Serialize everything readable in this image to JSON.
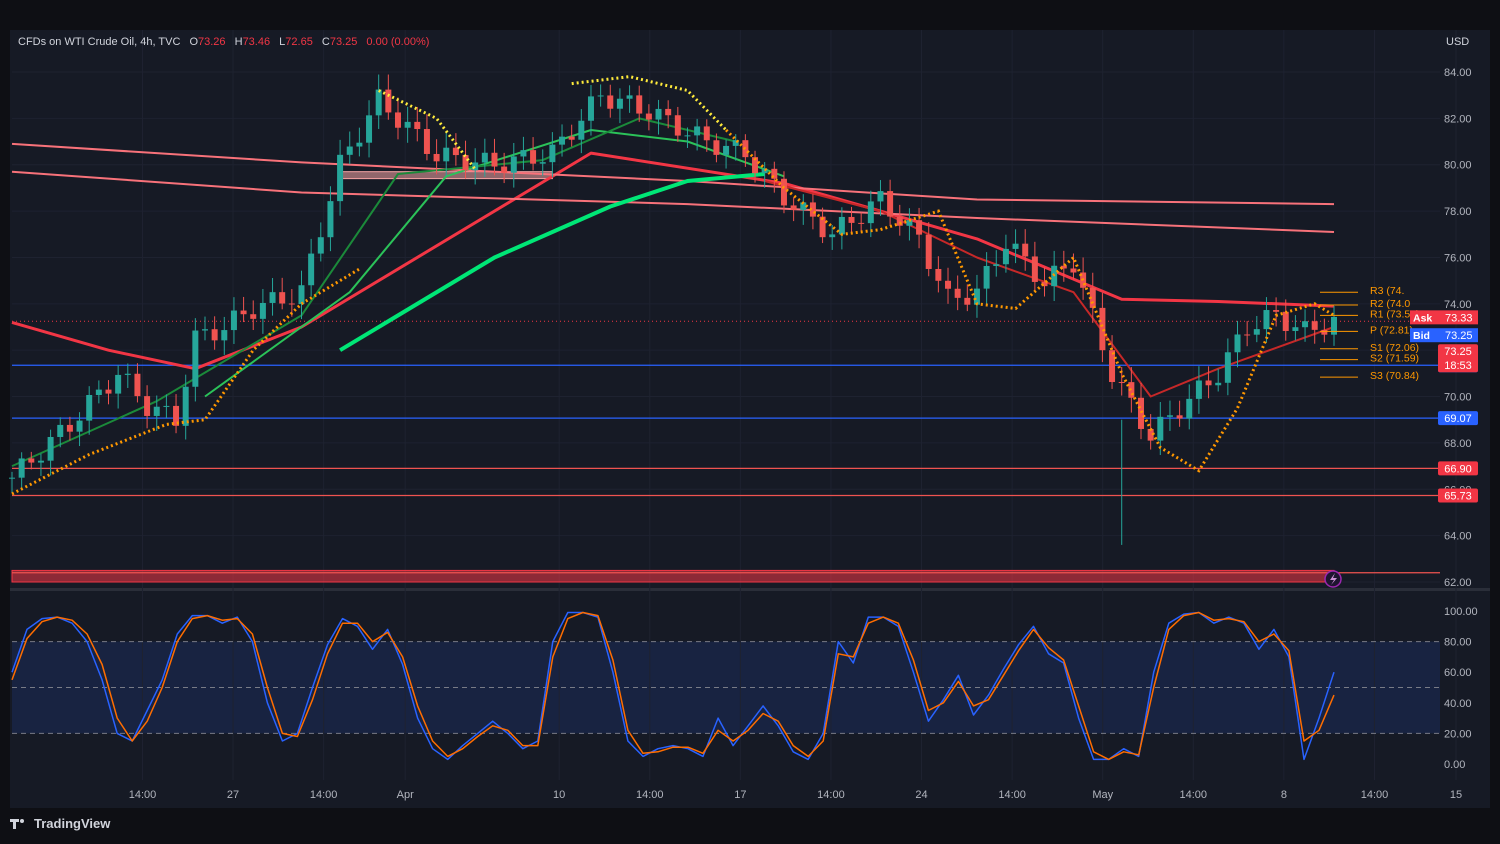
{
  "legend": {
    "symbol": "CFDs on WTI Crude Oil, 4h, TVC",
    "o_label": "O",
    "o_value": "73.26",
    "h_label": "H",
    "h_value": "73.46",
    "l_label": "L",
    "l_value": "72.65",
    "c_label": "C",
    "c_value": "73.25",
    "change": "0.00 (0.00%)"
  },
  "currency": "USD",
  "footer": {
    "brand": "TradingView"
  },
  "colors": {
    "background": "#161a25",
    "up": "#26a69a",
    "down": "#ef5350",
    "grid": "#1e2230",
    "text": "#b2b5be",
    "accent_blue": "#2962ff",
    "stoch_k": "#2962ff",
    "stoch_d": "#ff6d00"
  },
  "chart_data": [
    {
      "type": "candlestick",
      "x_ticks": [
        "14:00",
        "27",
        "14:00",
        "Apr",
        "10",
        "14:00",
        "17",
        "14:00",
        "24",
        "14:00",
        "May",
        "14:00",
        "8",
        "14:00",
        "15"
      ],
      "y_ticks": [
        "84.00",
        "82.00",
        "80.00",
        "78.00",
        "76.00",
        "74.00",
        "72.00",
        "70.00",
        "68.00",
        "66.00",
        "64.00",
        "62.00"
      ],
      "ylim": [
        61.7,
        85.0
      ],
      "close_path": [
        [
          0,
          66.5
        ],
        [
          6,
          68.8
        ],
        [
          11,
          71.0
        ],
        [
          14,
          69.6
        ],
        [
          17,
          69.0
        ],
        [
          19,
          72.5
        ],
        [
          22,
          73.0
        ],
        [
          25,
          73.8
        ],
        [
          30,
          74.5
        ],
        [
          34,
          80.0
        ],
        [
          38,
          82.8
        ],
        [
          44,
          80.4
        ],
        [
          50,
          80.0
        ],
        [
          56,
          80.5
        ],
        [
          61,
          83.0
        ],
        [
          66,
          82.3
        ],
        [
          72,
          81.0
        ],
        [
          76,
          80.5
        ],
        [
          80,
          78.6
        ],
        [
          85,
          77.0
        ],
        [
          90,
          78.5
        ],
        [
          94,
          76.8
        ],
        [
          97,
          74.2
        ],
        [
          100,
          74.5
        ],
        [
          103,
          76.7
        ],
        [
          107,
          74.9
        ],
        [
          110,
          75.8
        ],
        [
          114,
          71.0
        ],
        [
          118,
          68.3
        ],
        [
          121,
          69.5
        ],
        [
          125,
          71.0
        ],
        [
          128,
          73.0
        ],
        [
          131,
          73.5
        ],
        [
          134,
          72.8
        ],
        [
          137,
          73.25
        ]
      ],
      "moving_averages": [
        {
          "color": "#f23645",
          "width": 3,
          "points": [
            [
              0,
              73.2
            ],
            [
              10,
              72.0
            ],
            [
              19,
              71.2
            ],
            [
              30,
              73.0
            ],
            [
              60,
              80.5
            ],
            [
              80,
              79.2
            ],
            [
              100,
              76.8
            ],
            [
              115,
              74.2
            ],
            [
              125,
              74.1
            ],
            [
              137,
              73.9
            ]
          ]
        },
        {
          "color": "#f8727a",
          "width": 2,
          "points": [
            [
              0,
              80.9
            ],
            [
              30,
              80.1
            ],
            [
              70,
              79.3
            ],
            [
              100,
              78.5
            ],
            [
              137,
              78.3
            ]
          ]
        },
        {
          "color": "#f8727a",
          "width": 2,
          "points": [
            [
              0,
              79.7
            ],
            [
              30,
              78.8
            ],
            [
              70,
              78.3
            ],
            [
              100,
              77.7
            ],
            [
              137,
              77.1
            ]
          ]
        },
        {
          "color": "#00e676",
          "width": 4,
          "points": [
            [
              34,
              72.0
            ],
            [
              50,
              76.0
            ],
            [
              62,
              78.2
            ],
            [
              70,
              79.3
            ],
            [
              78,
              79.6
            ]
          ]
        },
        {
          "color": "#2bc259",
          "width": 2,
          "points": [
            [
              20,
              70.0
            ],
            [
              35,
              74.5
            ],
            [
              45,
              79.5
            ],
            [
              60,
              81.5
            ],
            [
              70,
              81.0
            ],
            [
              80,
              79.5
            ]
          ]
        },
        {
          "color": "#1b8a3a",
          "width": 2,
          "points": [
            [
              0,
              67.0
            ],
            [
              15,
              69.8
            ],
            [
              30,
              73.5
            ],
            [
              40,
              79.6
            ],
            [
              55,
              80.2
            ],
            [
              65,
              82.0
            ],
            [
              75,
              81.0
            ]
          ]
        },
        {
          "color": "#c62828",
          "width": 2,
          "points": [
            [
              78,
              79.3
            ],
            [
              90,
              78.0
            ],
            [
              100,
              76.0
            ],
            [
              110,
              74.5
            ],
            [
              118,
              70.0
            ],
            [
              125,
              71.2
            ],
            [
              137,
              73.0
            ]
          ]
        }
      ],
      "supertrend": [
        {
          "color": "#ff9800",
          "points": [
            [
              0,
              65.8
            ],
            [
              8,
              67.5
            ],
            [
              16,
              68.8
            ],
            [
              20,
              69.0
            ],
            [
              25,
              72.0
            ],
            [
              30,
              74.0
            ],
            [
              36,
              75.5
            ]
          ]
        },
        {
          "color": "#ffeb3b",
          "points": [
            [
              38,
              83.2
            ],
            [
              44,
              82.0
            ],
            [
              48,
              79.8
            ]
          ]
        },
        {
          "color": "#ffeb3b",
          "points": [
            [
              58,
              83.5
            ],
            [
              64,
              83.8
            ],
            [
              70,
              83.2
            ],
            [
              74,
              81.5
            ]
          ]
        },
        {
          "color": "#ff9800",
          "points": [
            [
              74,
              81.5
            ],
            [
              80,
              79.0
            ],
            [
              86,
              77.0
            ],
            [
              90,
              77.2
            ],
            [
              96,
              78.0
            ],
            [
              100,
              74.0
            ],
            [
              104,
              73.8
            ],
            [
              110,
              76.0
            ],
            [
              115,
              71.0
            ],
            [
              119,
              67.8
            ],
            [
              123,
              66.8
            ],
            [
              127,
              69.5
            ],
            [
              131,
              73.5
            ],
            [
              135,
              74.0
            ],
            [
              137,
              73.5
            ]
          ]
        }
      ],
      "horizontal_levels": [
        {
          "value": 71.35,
          "label": "71.35",
          "color": "#2962ff",
          "label_bg": "#2962ff"
        },
        {
          "value": 69.07,
          "label": "69.07",
          "color": "#2962ff",
          "label_bg": "#2962ff"
        },
        {
          "value": 66.9,
          "label": "66.90",
          "color": "#ef5350",
          "label_bg": "#f23645"
        },
        {
          "value": 65.73,
          "label": "65.73",
          "color": "#ef5350",
          "label_bg": "#f23645"
        },
        {
          "value": 62.4,
          "label": "",
          "color": "#ef5350",
          "label_bg": ""
        }
      ],
      "zones": [
        {
          "from_index": 34,
          "to_index": 56,
          "y_low": 79.4,
          "y_high": 79.7,
          "color": "#f8a5a5"
        },
        {
          "from_index": 0,
          "to_index": 137,
          "y_low": 62.0,
          "y_high": 62.5,
          "color": "#f23645"
        }
      ],
      "pivots": [
        {
          "label": "R3 (74.",
          "value": 74.5
        },
        {
          "label": "R2 (74.0",
          "value": 73.95
        },
        {
          "label": "R1 (73.50)",
          "value": 73.5
        },
        {
          "label": "P (72.81)",
          "value": 72.81
        },
        {
          "label": "S1 (72.06)",
          "value": 72.06
        },
        {
          "label": "S2 (71.59)",
          "value": 71.59
        },
        {
          "label": "S3 (70.84)",
          "value": 70.84
        }
      ],
      "price_tags": [
        {
          "name": "Ask",
          "value": 73.33,
          "label": "73.33",
          "bg": "#f23645"
        },
        {
          "name": "Bid",
          "value": 73.25,
          "label": "73.25",
          "bg": "#2962ff"
        },
        {
          "name": "last",
          "value": 73.25,
          "label": "73.25",
          "sub": "18:53",
          "bg": "#f23645"
        }
      ]
    },
    {
      "type": "line",
      "name": "stochastic",
      "ylim": [
        -8,
        104
      ],
      "y_ticks": [
        "100.00",
        "80.00",
        "60.00",
        "40.00",
        "20.00",
        "0.00"
      ],
      "bands": [
        80,
        50,
        20
      ],
      "series": [
        {
          "color": "#2962ff",
          "values": [
            60,
            88,
            95,
            96,
            92,
            80,
            55,
            20,
            15,
            35,
            55,
            85,
            97,
            97,
            92,
            96,
            80,
            40,
            15,
            20,
            50,
            78,
            95,
            90,
            75,
            88,
            65,
            30,
            10,
            3,
            12,
            20,
            28,
            20,
            10,
            15,
            80,
            99,
            99,
            96,
            60,
            15,
            5,
            10,
            12,
            10,
            5,
            30,
            12,
            25,
            38,
            25,
            8,
            3,
            20,
            80,
            66,
            96,
            96,
            90,
            60,
            28,
            42,
            58,
            32,
            45,
            62,
            78,
            90,
            72,
            66,
            30,
            3,
            3,
            10,
            5,
            60,
            92,
            98,
            99,
            92,
            96,
            92,
            75,
            88,
            70,
            3,
            30,
            60
          ]
        },
        {
          "color": "#ff6d00",
          "values": [
            55,
            82,
            93,
            96,
            94,
            85,
            65,
            30,
            15,
            28,
            50,
            80,
            95,
            97,
            94,
            95,
            85,
            50,
            20,
            18,
            42,
            72,
            92,
            92,
            80,
            86,
            70,
            38,
            15,
            5,
            10,
            18,
            25,
            22,
            12,
            12,
            70,
            95,
            99,
            97,
            68,
            22,
            7,
            8,
            11,
            11,
            7,
            22,
            15,
            22,
            33,
            28,
            12,
            5,
            15,
            72,
            70,
            92,
            96,
            92,
            68,
            35,
            40,
            54,
            38,
            42,
            58,
            74,
            88,
            76,
            68,
            38,
            8,
            3,
            8,
            6,
            50,
            88,
            97,
            99,
            94,
            95,
            93,
            80,
            85,
            74,
            15,
            22,
            45
          ]
        }
      ]
    }
  ]
}
